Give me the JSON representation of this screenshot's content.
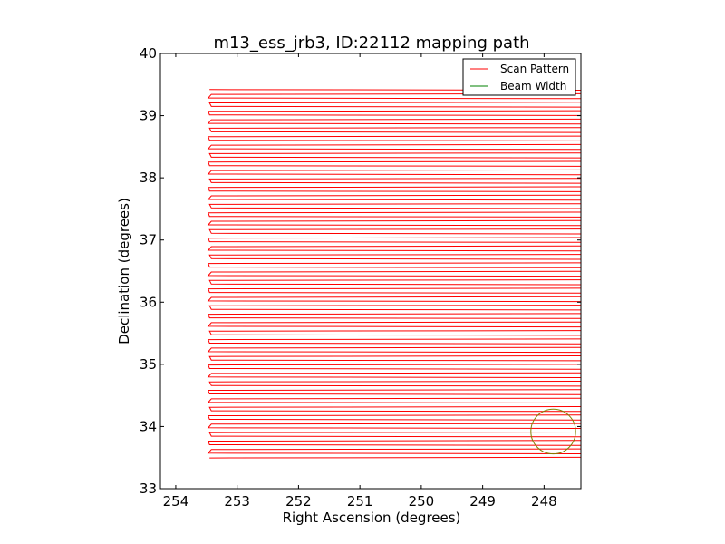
{
  "chart_data": {
    "type": "line",
    "title": "m13_ess_jrb3, ID:22112 mapping path",
    "xlabel": "Right Ascension (degrees)",
    "ylabel": "Declination (degrees)",
    "xlim": [
      254.25,
      247.4
    ],
    "ylim": [
      33,
      40
    ],
    "x_inverted": true,
    "xticks": [
      254,
      253,
      252,
      251,
      250,
      249,
      248
    ],
    "yticks": [
      33,
      34,
      35,
      36,
      37,
      38,
      39,
      40
    ],
    "xtick_labels": [
      "254",
      "253",
      "252",
      "251",
      "250",
      "249",
      "248"
    ],
    "ytick_labels": [
      "33",
      "34",
      "35",
      "36",
      "37",
      "38",
      "39",
      "40"
    ],
    "grid": false,
    "legend_position": "top-right",
    "series": [
      {
        "name": "Scan Pattern",
        "color": "#ff0000",
        "pattern": "raster",
        "ra_range": [
          247.4,
          253.45
        ],
        "dec_range": [
          33.48,
          39.42
        ],
        "row_spacing_deg": 0.068
      },
      {
        "name": "Beam Width",
        "color": "#008000",
        "shape": "circle",
        "center_ra": 247.85,
        "center_dec": 33.92,
        "radius_deg": 0.36
      }
    ]
  }
}
